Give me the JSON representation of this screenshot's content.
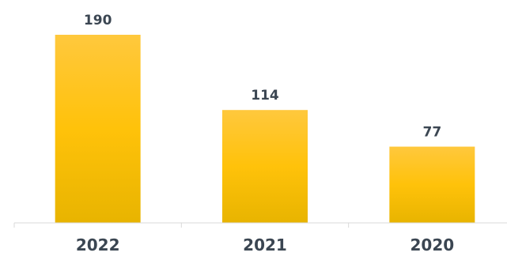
{
  "chart_data": {
    "type": "bar",
    "categories": [
      "2022",
      "2021",
      "2020"
    ],
    "values": [
      190,
      114,
      77
    ],
    "title": "",
    "xlabel": "",
    "ylabel": "",
    "ylim": [
      0,
      190
    ],
    "grid": false,
    "legend": "none",
    "data_labels": [
      "190",
      "114",
      "77"
    ],
    "colors": {
      "bar_top": "#ffc83d",
      "bar_mid": "#ffc20a",
      "bar_bottom": "#e8b400",
      "text": "#3b4652",
      "axis": "#d9d9d9"
    }
  }
}
